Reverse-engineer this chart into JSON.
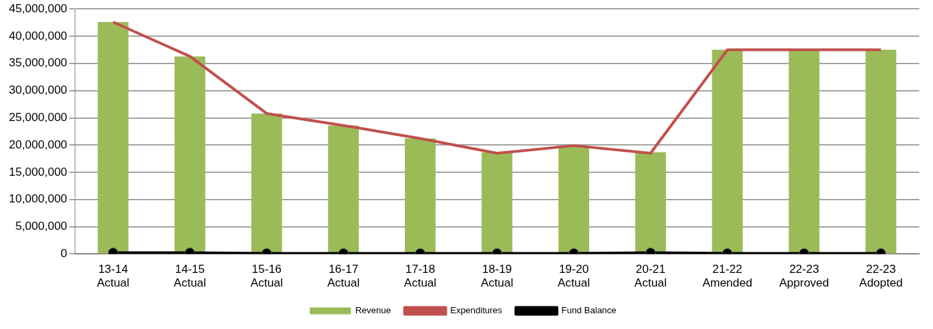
{
  "chart_data": {
    "type": "bar",
    "categories": [
      "13-14\nActual",
      "14-15\nActual",
      "15-16\nActual",
      "16-17\nActual",
      "17-18\nActual",
      "18-19\nActual",
      "19-20\nActual",
      "20-21\nActual",
      "21-22\nAmended",
      "22-23\nApproved",
      "22-23\nAdopted"
    ],
    "series": [
      {
        "name": "Revenue",
        "color": "#9bbb59",
        "values": [
          42600000,
          36300000,
          25800000,
          23600000,
          21200000,
          18700000,
          19900000,
          18700000,
          37500000,
          37500000,
          37500000
        ]
      },
      {
        "name": "Expenditures",
        "type": "line",
        "color": "#c0504d",
        "values": [
          42600000,
          36300000,
          25800000,
          23600000,
          21200000,
          18500000,
          19900000,
          18500000,
          37500000,
          37500000,
          37500000
        ]
      },
      {
        "name": "Fund Balance",
        "type": "line",
        "color": "#000000",
        "marker": "circle",
        "values": [
          200000,
          200000,
          100000,
          100000,
          100000,
          100000,
          100000,
          200000,
          100000,
          100000,
          100000
        ]
      }
    ],
    "ylim": [
      0,
      45000000
    ],
    "yticks": [
      0,
      {
        "value": 5000000,
        "label": "5,000,000"
      },
      {
        "value": 10000000,
        "label": "10,000,000"
      },
      {
        "value": 15000000,
        "label": "15,000,000"
      },
      {
        "value": 20000000,
        "label": "20,000,000"
      },
      {
        "value": 25000000,
        "label": "25,000,000"
      },
      {
        "value": 30000000,
        "label": "30,000,000"
      },
      {
        "value": 35000000,
        "label": "35,000,000"
      },
      {
        "value": 40000000,
        "label": "40,000,000"
      },
      {
        "value": 45000000,
        "label": "45,000,000"
      }
    ],
    "grid": "y",
    "legend": "bottom"
  }
}
